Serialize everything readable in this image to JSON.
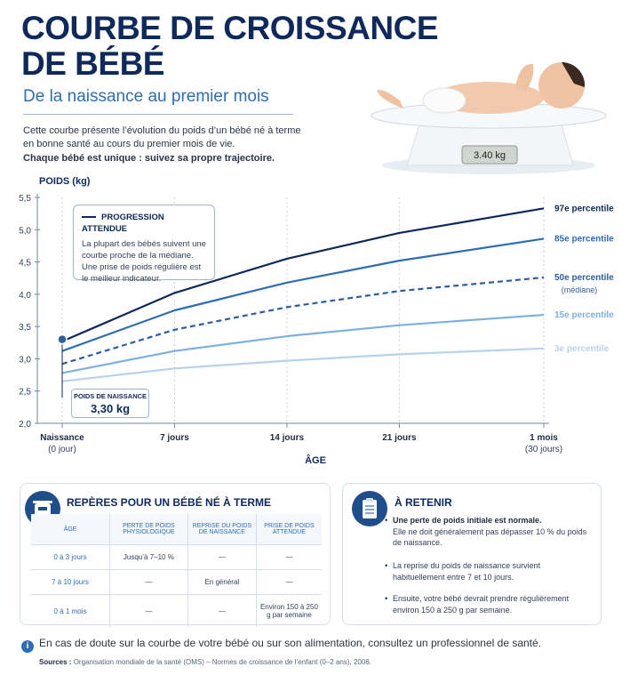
{
  "header": {
    "title_lines": [
      "COURBE DE CROISSANCE",
      "DE BÉBÉ"
    ],
    "subtitle": "De la naissance au premier mois",
    "intro": "Cette courbe présente l’évolution du poids d’un bébé né à terme en bonne santé au cours du premier mois de vie.",
    "intro_bold": "Chaque bébé est unique : suivez sa propre trajectoire.",
    "scale_display": "3.40 kg"
  },
  "chart_data": {
    "type": "line",
    "y_label": "POIDS (kg)",
    "x_label": "ÂGE",
    "x": [
      0,
      7,
      14,
      21,
      30
    ],
    "xlim": [
      0,
      30
    ],
    "xticks": [
      {
        "value": 0,
        "label": "Naissance",
        "sublabel": "(0 jour)"
      },
      {
        "value": 7,
        "label": "7 jours"
      },
      {
        "value": 14,
        "label": "14 jours"
      },
      {
        "value": 21,
        "label": "21 jours"
      },
      {
        "value": 30,
        "label": "1 mois",
        "sublabel": "(30 jours)"
      }
    ],
    "ylim": [
      2.0,
      5.5
    ],
    "yticks": [
      {
        "value": 2.0,
        "label": "2,0"
      },
      {
        "value": 2.5,
        "label": "2,5"
      },
      {
        "value": 3.0,
        "label": "3,0"
      },
      {
        "value": 3.5,
        "label": "3,5"
      },
      {
        "value": 4.0,
        "label": "4,0"
      },
      {
        "value": 4.5,
        "label": "4,5"
      },
      {
        "value": 5.0,
        "label": "5,0"
      },
      {
        "value": 5.5,
        "label": "5,5"
      }
    ],
    "grid": "x",
    "series": [
      {
        "name": "97e percentile",
        "color": "#0f2a5a",
        "values": [
          3.27,
          4.02,
          4.55,
          4.95,
          5.33
        ]
      },
      {
        "name": "85e percentile",
        "color": "#2f6db3",
        "values": [
          3.12,
          3.75,
          4.18,
          4.52,
          4.86
        ]
      },
      {
        "name": "50e percentile",
        "note": "(médiane)",
        "color": "#2f5e9e",
        "dashed": true,
        "values": [
          2.92,
          3.45,
          3.8,
          4.05,
          4.26
        ]
      },
      {
        "name": "15e percentile",
        "color": "#7fb0dd",
        "values": [
          2.78,
          3.12,
          3.35,
          3.52,
          3.68
        ]
      },
      {
        "name": "3e percentile",
        "color": "#b7d3ec",
        "values": [
          2.65,
          2.85,
          2.97,
          3.07,
          3.16
        ]
      }
    ],
    "callout": {
      "title": "PROGRESSION ATTENDUE",
      "text": "La plupart des bébés suivent une courbe proche de la médiane. Une prise de poids régulière est le meilleur indicateur."
    },
    "birth_point": {
      "x": 0,
      "value": 3.3,
      "title": "POIDS DE NAISSANCE",
      "label": "3,30 kg",
      "color": "#2f5e9e"
    }
  },
  "table": {
    "title": "REPÈRES POUR UN BÉBÉ NÉ À TERME",
    "headers": [
      "ÂGE",
      "PERTE DE POIDS PHYSIOLOGIQUE",
      "REPRISE DU POIDS DE NAISSANCE",
      "PRISE DE POIDS ATTENDUE"
    ],
    "rows": [
      [
        "0 à 3 jours",
        "Jusqu’à 7–10 %",
        "—",
        "—"
      ],
      [
        "7 à 10 jours",
        "—",
        "En général",
        "—"
      ],
      [
        "0 à 1 mois",
        "—",
        "—",
        "Environ 150 à 250 g par semaine"
      ]
    ]
  },
  "retenir": {
    "title": "À RETENIR",
    "bullets": [
      {
        "bold": "Une perte de poids initiale est normale.",
        "text": "Elle ne doit généralement pas dépasser 10 % du poids de naissance."
      },
      {
        "text": "La reprise du poids de naissance survient habituellement entre 7 et 10 jours."
      },
      {
        "text": "Ensuite, votre bébé devrait prendre régulièrement environ 150 à 250 g par semaine."
      }
    ]
  },
  "footer": {
    "note": "En cas de doute sur la courbe de votre bébé ou sur son alimentation, consultez un professionnel de santé.",
    "sources_label": "Sources :",
    "sources": "Organisation mondiale de la santé (OMS) – Normes de croissance de l’enfant (0–2 ans), 2006."
  }
}
